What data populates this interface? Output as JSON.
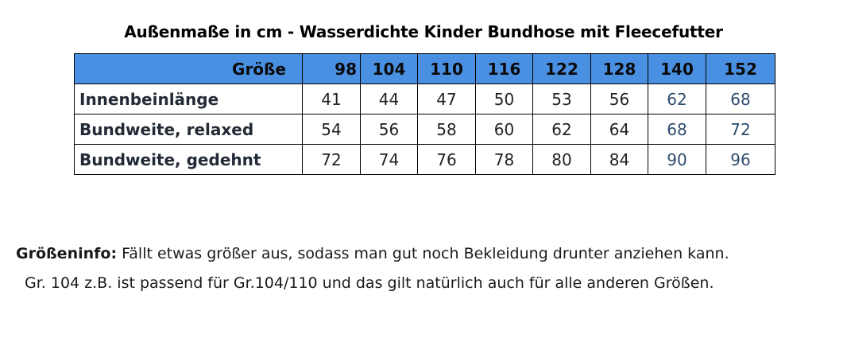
{
  "title": "Außenmaße in cm - Wasserdichte Kinder Bundhose mit Fleecefutter",
  "table": {
    "header_label": "Größe",
    "sizes": [
      "98",
      "104",
      "110",
      "116",
      "122",
      "128",
      "140",
      "152"
    ],
    "rows": [
      {
        "label": "Innenbeinlänge",
        "values": [
          "41",
          "44",
          "47",
          "50",
          "53",
          "56",
          "62",
          "68"
        ]
      },
      {
        "label": "Bundweite, relaxed",
        "values": [
          "54",
          "56",
          "58",
          "60",
          "62",
          "64",
          "68",
          "72"
        ]
      },
      {
        "label": "Bundweite, gedehnt",
        "values": [
          "72",
          "74",
          "76",
          "78",
          "80",
          "84",
          "90",
          "96"
        ]
      }
    ]
  },
  "info": {
    "label": "Größeninfo:",
    "line1": " Fällt etwas größer aus, sodass man gut noch Bekleidung drunter anziehen kann.",
    "line2": "Gr. 104 z.B. ist passend für Gr.104/110 und das gilt natürlich auch für alle anderen Größen."
  },
  "colors": {
    "header_bg": "#4a90e2"
  }
}
